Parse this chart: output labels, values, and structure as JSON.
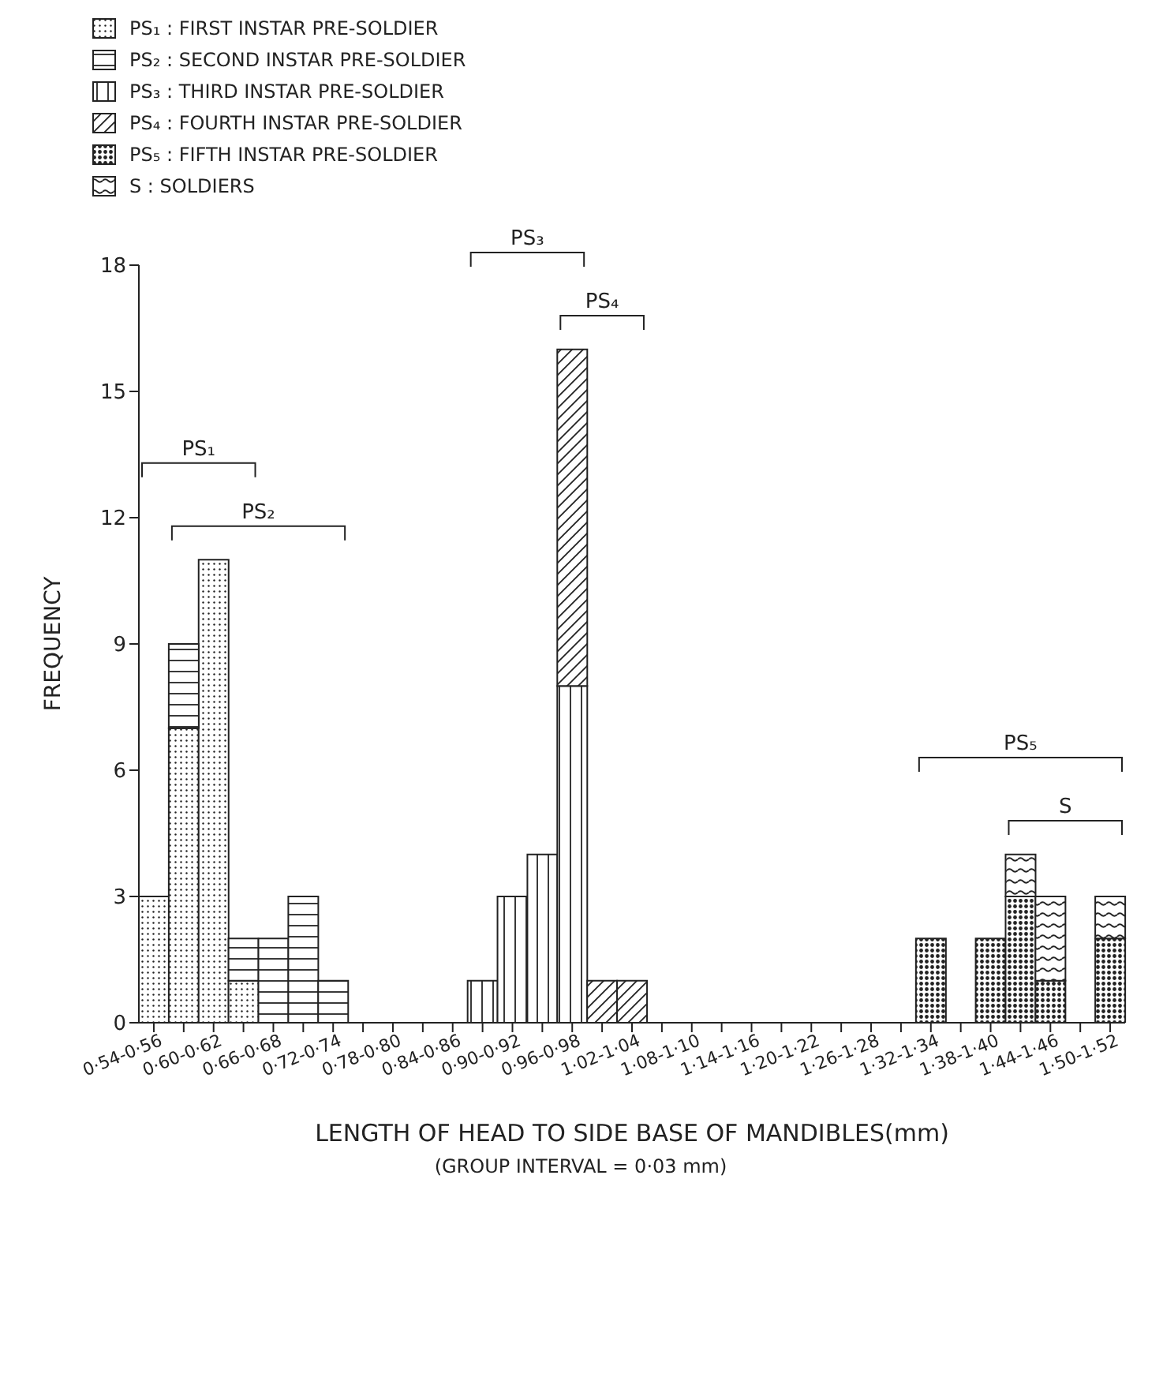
{
  "chart_data": {
    "type": "bar",
    "stacked": true,
    "xlabel": "LENGTH OF HEAD TO SIDE BASE OF MANDIBLES(mm)",
    "ylabel": "FREQUENCY",
    "categories": [
      "0·54-0·56",
      null,
      "0·60-0·62",
      null,
      "0·66-0·68",
      null,
      "0·72-0·74",
      null,
      "0·78-0·80",
      null,
      "0·84-0·86",
      null,
      "0·90-0·92",
      null,
      "0·96-0·98",
      null,
      "1·02-1·04",
      null,
      "1·08-1·10",
      null,
      "1·14-1·16",
      null,
      "1·20-1·22",
      null,
      "1·26-1·28",
      null,
      "1·32-1·34",
      null,
      "1·38-1·40",
      null,
      "1·44-1·46",
      null,
      "1·50-1·52"
    ],
    "series": [
      {
        "name": "PS₁ : FIRST INSTAR PRE-SOLDIER",
        "color": "#222222",
        "values": [
          3,
          7,
          11,
          1,
          null,
          null,
          null,
          null,
          null,
          null,
          null,
          null,
          null,
          null,
          null,
          null,
          null,
          null,
          null,
          null,
          null,
          null,
          null,
          null,
          null,
          null,
          null,
          null,
          null,
          null,
          null,
          null,
          null
        ]
      },
      {
        "name": "PS₂ : SECOND INSTAR PRE-SOLDIER",
        "color": "#222222",
        "values": [
          null,
          2,
          null,
          1,
          2,
          3,
          1,
          null,
          null,
          null,
          null,
          null,
          null,
          null,
          null,
          null,
          null,
          null,
          null,
          null,
          null,
          null,
          null,
          null,
          null,
          null,
          null,
          null,
          null,
          null,
          null,
          null,
          null
        ]
      },
      {
        "name": "PS₃ : THIRD INSTAR PRE-SOLDIER",
        "color": "#222222",
        "values": [
          null,
          null,
          null,
          null,
          null,
          null,
          null,
          null,
          null,
          null,
          null,
          1,
          3,
          4,
          8,
          null,
          null,
          null,
          null,
          null,
          null,
          null,
          null,
          null,
          null,
          null,
          null,
          null,
          null,
          null,
          null,
          null,
          null
        ]
      },
      {
        "name": "PS₄ : FOURTH INSTAR PRE-SOLDIER",
        "color": "#222222",
        "values": [
          null,
          null,
          null,
          null,
          null,
          null,
          null,
          null,
          null,
          null,
          null,
          null,
          null,
          null,
          8,
          1,
          1,
          null,
          null,
          null,
          null,
          null,
          null,
          null,
          null,
          null,
          null,
          null,
          null,
          null,
          null,
          null,
          null
        ]
      },
      {
        "name": "PS₅ : FIFTH INSTAR PRE-SOLDIER",
        "color": "#222222",
        "values": [
          null,
          null,
          null,
          null,
          null,
          null,
          null,
          null,
          null,
          null,
          null,
          null,
          null,
          null,
          null,
          null,
          null,
          null,
          null,
          null,
          null,
          null,
          null,
          null,
          null,
          null,
          2,
          null,
          2,
          3,
          1,
          null,
          2
        ]
      },
      {
        "name": "S : SOLDIERS",
        "color": "#222222",
        "values": [
          null,
          null,
          null,
          null,
          null,
          null,
          null,
          null,
          null,
          null,
          null,
          null,
          null,
          null,
          null,
          null,
          null,
          null,
          null,
          null,
          null,
          null,
          null,
          null,
          null,
          null,
          null,
          null,
          null,
          1,
          2,
          null,
          1
        ]
      }
    ],
    "ylim": [
      0,
      18
    ],
    "yticks": [
      0,
      3,
      6,
      9,
      12,
      15,
      18
    ],
    "grid": false,
    "legend": "top left",
    "annotations": [
      "PS₁",
      "PS₂",
      "PS₃",
      "PS₄",
      "PS₅",
      "S",
      "(GROUP INTERVAL = 0·03 mm)"
    ]
  }
}
